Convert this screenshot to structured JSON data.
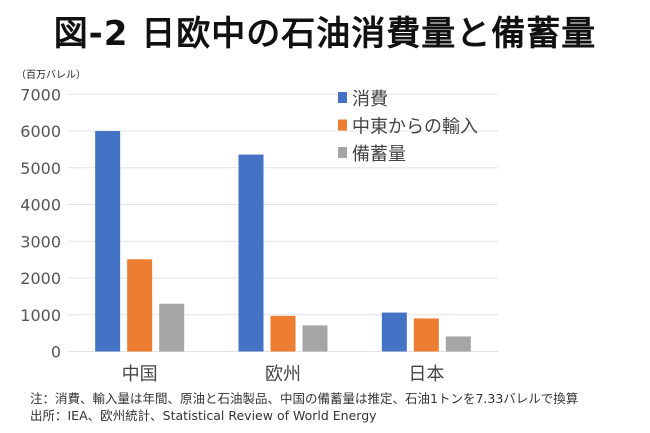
{
  "title": "図-2 日欧中の石油消費量と備蓄量",
  "unit": "（百万バレル）",
  "notes": [
    "注：消費、輸入量は年間、原油と石油製品、中国の備蓄量は推定、石油1トンを7.33バレルで換算",
    "出所：IEA、欧州統計、Statistical Review of World Energy"
  ],
  "chart_data": {
    "type": "bar",
    "title": "図-2 日欧中の石油消費量と備蓄量",
    "ylabel": "（百万バレル）",
    "categories": [
      "中国",
      "欧州",
      "日本"
    ],
    "series": [
      {
        "name": "消費",
        "color": "#4472C4",
        "values": [
          6000,
          5360,
          1060
        ]
      },
      {
        "name": "中東からの輸入",
        "color": "#ED7D31",
        "values": [
          2510,
          970,
          900
        ]
      },
      {
        "name": "備蓄量",
        "color": "#A5A5A5",
        "values": [
          1300,
          710,
          410
        ]
      }
    ],
    "ylim": [
      0,
      7000
    ],
    "yticks": [
      0,
      1000,
      2000,
      3000,
      4000,
      5000,
      6000,
      7000
    ],
    "grid": true,
    "legend": "top-right"
  }
}
